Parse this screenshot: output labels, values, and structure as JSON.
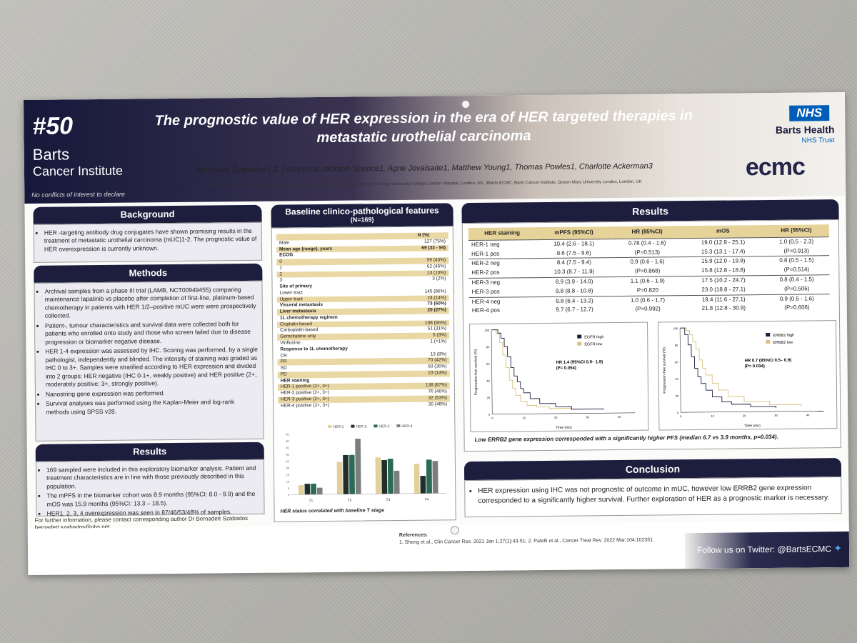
{
  "poster": {
    "number": "#50",
    "institute_line1": "Barts",
    "institute_line2": "Cancer Institute",
    "conflict": "No conflicts of interest to declare",
    "title": "The prognostic value of HER expression in the era of HER targeted therapies in metastatic urothelial carcinoma",
    "authors": "Bernadett Szabados1,2, Francesca Jackson-Spence1, Agne Jovaisaite1, Matthew Young1, Thomas Powles1, Charlotte Ackerman3",
    "affiliations": "1Barts Cancer Institute, Queen Mary University of London, London, UK; 2Department of Urology, University College London Hospital, London, UK, 3Barts ECMC, Barts Cancer Institute, Queen Mary University London, London, UK",
    "nhs": "NHS",
    "trust_name": "Barts Health",
    "trust_sub": "NHS Trust",
    "ecmc": "ecmc"
  },
  "background": {
    "heading": "Background",
    "items": [
      "HER -targeting antibody drug conjugates have shown promising results in the treatment of metastatic urothelial carcinoma (mUC)1-2. The prognostic value of HER overexpression is currently unknown."
    ]
  },
  "methods": {
    "heading": "Methods",
    "items": [
      "Archival samples from a phase III trial (LAMB, NCT00949455) comparing maintenance lapatinib vs placebo after completion of first-line, platinum-based chemotherapy in patients with HER 1/2–positive mUC were were prospectively collected.",
      "Patient-, tumour characteristics and survival data were collected both for patients who enrolled onto study and those who screen failed due to disease progression or biomarker negative disease.",
      "HER 1-4 expression was assessed by IHC. Scoring was performed, by a single pathologist, independently and blinded. The intensity of staining was graded as IHC 0 to 3+. Samples were stratified according to HER expression and divided into 2 groups: HER negative (IHC 0-1+, weakly positive) and HER positive (2+, moderately positive; 3+, strongly positive).",
      "Nanostring gene expression was performed.",
      "Survival analyses was performed using the Kaplan-Meier and log-rank methods using SPSS v28."
    ]
  },
  "results_left": {
    "heading": "Results",
    "items": [
      "169 sampled were included in this exploratory biomarker analysis. Patient and treatment characteristics are in line with those previously described in this population.",
      "The mPFS in the biomarker cohort was 8.9 months (95%CI: 8.0 - 9.9) and the mOS was 15.9 months (95%CI: 13.3 – 18.5).",
      "HER1, 2, 3, 4 overexpression was seen in 87/46/53/48% of samples."
    ]
  },
  "contact": {
    "line1": "For further information, please contact corresponding author Dr Bernadett Szabados",
    "line2": "bernadett.szabados@nhs.net"
  },
  "baseline": {
    "heading": "Baseline clinico-pathological features",
    "subheading": "(N=169)",
    "col_header": "N (%)",
    "rows": [
      {
        "label": "Male",
        "value": "127 (75%)",
        "style": "plain"
      },
      {
        "label": "Mean age (range), years",
        "value": "69 (33 - 94)",
        "style": "secalt"
      },
      {
        "label": "ECOG",
        "value": "",
        "style": "sec"
      },
      {
        "label": "0",
        "value": "59 (43%)",
        "style": "alt"
      },
      {
        "label": "1",
        "value": "62 (45%)",
        "style": "plain"
      },
      {
        "label": "2",
        "value": "13 (10%)",
        "style": "alt"
      },
      {
        "label": "3",
        "value": "3 (2%)",
        "style": "plain"
      },
      {
        "label": "Site of primary",
        "value": "",
        "style": "sec"
      },
      {
        "label": "Lower tract",
        "value": "145 (86%)",
        "style": "plain"
      },
      {
        "label": "Upper tract",
        "value": "24 (14%)",
        "style": "alt"
      },
      {
        "label": "Visceral metastasis",
        "value": "73 (60%)",
        "style": "sec"
      },
      {
        "label": "Liver metastasis",
        "value": "20 (27%)",
        "style": "secalt"
      },
      {
        "label": "1L chemotherapy regimen",
        "value": "",
        "style": "sec"
      },
      {
        "label": "Cisplatin-based",
        "value": "108 (66%)",
        "style": "alt"
      },
      {
        "label": "Carboplatin-based",
        "value": "51 (31%)",
        "style": "plain"
      },
      {
        "label": "Gemcitabine only",
        "value": "5 (3%)",
        "style": "alt"
      },
      {
        "label": "Vinflunine",
        "value": "1 (<1%)",
        "style": "plain"
      },
      {
        "label": "Response to 1L chemotherapy",
        "value": "",
        "style": "sec"
      },
      {
        "label": "CR",
        "value": "13 (8%)",
        "style": "plain"
      },
      {
        "label": "PR",
        "value": "70 (42%)",
        "style": "alt"
      },
      {
        "label": "SD",
        "value": "60 (36%)",
        "style": "plain"
      },
      {
        "label": "PD",
        "value": "23 (14%)",
        "style": "alt"
      },
      {
        "label": "HER staining",
        "value": "",
        "style": "sec"
      },
      {
        "label": "HER-1 positive (2+, 3+)",
        "value": "138 (87%)",
        "style": "alt"
      },
      {
        "label": "HER-2 positive (2+, 3+)",
        "value": "76 (46%)",
        "style": "plain"
      },
      {
        "label": "HER-3 positive (2+, 3+)",
        "value": "32 (53%)",
        "style": "alt"
      },
      {
        "label": "HER-4 positive (2+, 3+)",
        "value": "30 (48%)",
        "style": "plain"
      }
    ],
    "caption": "HER status correlated with baseline T stage"
  },
  "chart_data": {
    "type": "bar",
    "categories": [
      "T1",
      "T2",
      "T3",
      "T4"
    ],
    "series": [
      {
        "name": "HER-1",
        "values": [
          7,
          24,
          27,
          22
        ]
      },
      {
        "name": "HER-2",
        "values": [
          8,
          29,
          25,
          13
        ]
      },
      {
        "name": "HER-3",
        "values": [
          8,
          29,
          26,
          25
        ]
      },
      {
        "name": "HER-4",
        "values": [
          5,
          41,
          17,
          24
        ]
      }
    ],
    "ylim": [
      0,
      45
    ],
    "colors": [
      "#e3cf9a",
      "#1f2f2a",
      "#2b6a56",
      "#7b7f7b"
    ],
    "legend": "top"
  },
  "results_right": {
    "heading": "Results",
    "columns": [
      "HER staining",
      "mPFS (95%CI)",
      "HR (95%CI)",
      "mOS",
      "HR (95%CI)"
    ],
    "groups": [
      {
        "rows": [
          [
            "HER-1 neg",
            "10.4 (2.6 - 18.1)",
            "0.78 (0.4 - 1.6)",
            "19.0 (12.9 - 25.1)",
            "1.0 (0.5 - 2.3)"
          ],
          [
            "HER-1 pos",
            "8.6 (7.5 - 9.6)",
            "(P=0.513)",
            "15.3 (13.1 - 17.4)",
            "(P=0.913)"
          ]
        ]
      },
      {
        "rows": [
          [
            "HER-2 neg",
            "8.4 (7.5 - 9.4)",
            "0.9 (0.6 - 1.6)",
            "15.9 (12.0 - 19.9)",
            "0.8 (0.5 - 1.5)"
          ],
          [
            "HER-2 pos",
            "10.3 (8.7 - 11.9)",
            "(P=0.868)",
            "15.8 (12.8 - 18.8)",
            "(P=0.514)"
          ]
        ]
      },
      {
        "rows": [
          [
            "HER-3 neg",
            "8.9 (3.9 - 14.0)",
            "1.1 (0.6 - 1.9)",
            "17.5 (10.2 - 24.7)",
            "0.8 (0.4 - 1.5)"
          ],
          [
            "HER-3 pos",
            "9.8 (8.8 - 10.8)",
            "P=0.820",
            "23.0 (18.8 - 27.1)",
            "(P=0.506)"
          ]
        ]
      },
      {
        "rows": [
          [
            "HER-4 neg",
            "9.8 (6.4 - 13.2)",
            "1.0 (0.6 - 1.7)",
            "19.4 (11.6 - 27.1)",
            "0.9 (0.5 - 1.6)"
          ],
          [
            "HER-4 pos",
            "9.7 (6.7 - 12.7)",
            "(P=0.992)",
            "21.8 (12.8 - 30.9)",
            "(P=0.606)"
          ]
        ]
      }
    ],
    "km_left": {
      "legend_high": "EGFR high",
      "legend_low": "EGFR low",
      "hr": "HR 1.4 (95%CI 0.9– 1.9)",
      "p": "(P= 0.054)",
      "xlabel": "Time (mo)",
      "ylabel": "Progression-free survival (%)"
    },
    "km_right": {
      "legend_high": "ERBB2 high",
      "legend_low": "ERBB2 low",
      "hr": "HR 0.7 (95%CI 0.5– 0.9)",
      "p": "(P= 0.034)",
      "xlabel": "Time (mo)",
      "ylabel": "Progression-free survival (%)"
    },
    "km_caption": "Low ERRB2 gene expression corresponded with a significantly higher PFS (median 6.7 vs 3.9 months, p=0.034)."
  },
  "conclusion": {
    "heading": "Conclusion",
    "text": "HER expression using IHC was not prognostic of outcome in mUC, however low ERRB2 gene expression corresponded to a significantly higher survival. Further exploration of HER as a prognostic marker is necessary."
  },
  "references": {
    "heading": "References:",
    "items": [
      "1. Sheng et al., Clin Cancer Res. 2021 Jan 1;27(1):43-51; 2. Patelli et al., Cancer Treat Rev. 2022 Mar;104:102351."
    ]
  },
  "twitter": "Follow us on Twitter: @BartsECMC"
}
